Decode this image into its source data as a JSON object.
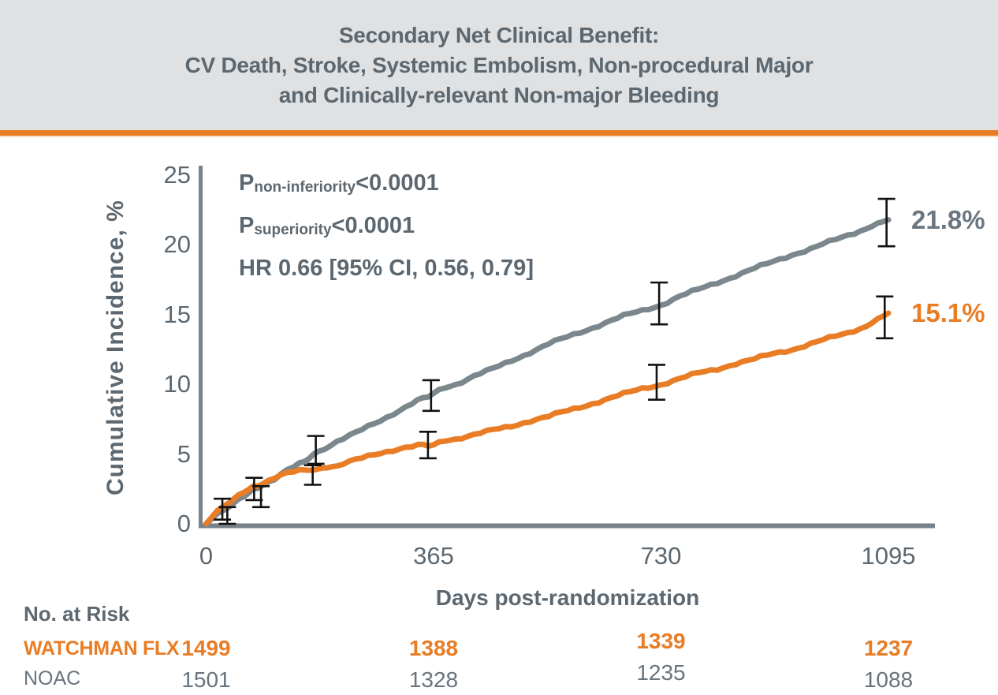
{
  "title": {
    "line1": "Secondary Net Clinical Benefit:",
    "line2": "CV Death, Stroke, Systemic Embolism, Non-procedural Major",
    "line3": "and Clinically-relevant Non-major Bleeding"
  },
  "colors": {
    "banner_bg": "#dfe1e2",
    "accent_orange": "#e87c24",
    "curve_orange": "#e87d26",
    "curve_gray": "#7c878d",
    "axis_gray": "#76818a",
    "slate_text": "#5c6770",
    "risk_gray": "#69737c",
    "error_bar_black": "#111111",
    "end_label_gray": "#6b7680"
  },
  "stats": {
    "p_label": "P",
    "non_inferiority_sub": "non-inferiority",
    "non_inferiority_value": "<0.0001",
    "superiority_sub": "superiority",
    "superiority_value": "<0.0001",
    "hr_line": "HR 0.66 [95% CI, 0.56, 0.79]"
  },
  "endpoint_labels": {
    "noac": "21.8%",
    "watchman": "15.1%"
  },
  "axes": {
    "y_label": "Cumulative Incidence, %",
    "x_label": "Days post-randomization",
    "y_ticks": [
      0,
      5,
      10,
      15,
      20,
      25
    ],
    "x_ticks": [
      0,
      365,
      730,
      1095
    ]
  },
  "risk_table": {
    "header": "No. at Risk",
    "rows": [
      {
        "label": "WATCHMAN FLX",
        "color": "orange",
        "values": [
          "1499",
          "1388",
          "1339",
          "1237"
        ]
      },
      {
        "label": "NOAC",
        "color": "gray",
        "values": [
          "1501",
          "1328",
          "1235",
          "1088"
        ]
      }
    ]
  },
  "chart_data": {
    "type": "line",
    "title": "Secondary Net Clinical Benefit: CV Death, Stroke, Systemic Embolism, Non-procedural Major and Clinically-relevant Non-major Bleeding",
    "xlabel": "Days post-randomization",
    "ylabel": "Cumulative Incidence, %",
    "xlim": [
      0,
      1150
    ],
    "ylim": [
      0,
      25
    ],
    "xticks": [
      0,
      365,
      730,
      1095
    ],
    "yticks": [
      0,
      5,
      10,
      15,
      20,
      25
    ],
    "grid": false,
    "legend": "end-of-curve labels",
    "stats": {
      "p_non_inferiority": "<0.0001",
      "p_superiority": "<0.0001",
      "hr": 0.66,
      "ci_95": [
        0.56,
        0.79
      ]
    },
    "series": [
      {
        "name": "NOAC",
        "color": "#7c878d",
        "end_label": "21.8%",
        "points": [
          [
            0,
            0
          ],
          [
            8,
            0.3
          ],
          [
            18,
            0.7
          ],
          [
            30,
            1.0
          ],
          [
            45,
            1.5
          ],
          [
            60,
            2.0
          ],
          [
            75,
            2.4
          ],
          [
            90,
            2.8
          ],
          [
            110,
            3.2
          ],
          [
            130,
            3.8
          ],
          [
            150,
            4.3
          ],
          [
            165,
            4.7
          ],
          [
            180,
            5.2
          ],
          [
            210,
            5.9
          ],
          [
            240,
            6.5
          ],
          [
            270,
            7.2
          ],
          [
            300,
            7.9
          ],
          [
            330,
            8.6
          ],
          [
            365,
            9.4
          ],
          [
            400,
            10.0
          ],
          [
            430,
            10.6
          ],
          [
            460,
            11.1
          ],
          [
            490,
            11.7
          ],
          [
            520,
            12.3
          ],
          [
            550,
            12.9
          ],
          [
            580,
            13.4
          ],
          [
            610,
            13.9
          ],
          [
            640,
            14.4
          ],
          [
            670,
            14.9
          ],
          [
            700,
            15.3
          ],
          [
            730,
            15.7
          ],
          [
            760,
            16.3
          ],
          [
            790,
            16.8
          ],
          [
            820,
            17.3
          ],
          [
            850,
            17.8
          ],
          [
            880,
            18.3
          ],
          [
            910,
            18.8
          ],
          [
            940,
            19.3
          ],
          [
            970,
            19.7
          ],
          [
            1000,
            20.2
          ],
          [
            1030,
            20.7
          ],
          [
            1060,
            21.2
          ],
          [
            1095,
            21.8
          ]
        ]
      },
      {
        "name": "WATCHMAN FLX",
        "color": "#e87d26",
        "end_label": "15.1%",
        "points": [
          [
            0,
            0
          ],
          [
            8,
            0.4
          ],
          [
            18,
            0.9
          ],
          [
            30,
            1.3
          ],
          [
            45,
            1.8
          ],
          [
            60,
            2.3
          ],
          [
            75,
            2.6
          ],
          [
            90,
            2.9
          ],
          [
            110,
            3.3
          ],
          [
            130,
            3.6
          ],
          [
            150,
            3.8
          ],
          [
            170,
            3.9
          ],
          [
            195,
            4.0
          ],
          [
            220,
            4.3
          ],
          [
            250,
            4.7
          ],
          [
            280,
            5.1
          ],
          [
            310,
            5.4
          ],
          [
            340,
            5.6
          ],
          [
            365,
            5.7
          ],
          [
            400,
            6.1
          ],
          [
            430,
            6.4
          ],
          [
            460,
            6.7
          ],
          [
            490,
            7.0
          ],
          [
            520,
            7.4
          ],
          [
            550,
            7.7
          ],
          [
            580,
            8.1
          ],
          [
            610,
            8.5
          ],
          [
            640,
            8.9
          ],
          [
            670,
            9.3
          ],
          [
            700,
            9.7
          ],
          [
            730,
            10.0
          ],
          [
            760,
            10.4
          ],
          [
            790,
            10.8
          ],
          [
            820,
            11.1
          ],
          [
            850,
            11.5
          ],
          [
            880,
            11.8
          ],
          [
            910,
            12.2
          ],
          [
            940,
            12.5
          ],
          [
            970,
            12.9
          ],
          [
            1000,
            13.3
          ],
          [
            1030,
            13.7
          ],
          [
            1060,
            14.2
          ],
          [
            1095,
            15.1
          ]
        ]
      }
    ],
    "error_bars": [
      {
        "series": "NOAC",
        "day": 34,
        "lo": 0.0,
        "hi": 1.2
      },
      {
        "series": "NOAC",
        "day": 88,
        "lo": 1.2,
        "hi": 2.7
      },
      {
        "series": "NOAC",
        "day": 176,
        "lo": 4.3,
        "hi": 6.3
      },
      {
        "series": "NOAC",
        "day": 361,
        "lo": 8.1,
        "hi": 10.3
      },
      {
        "series": "NOAC",
        "day": 727,
        "lo": 14.3,
        "hi": 17.3
      },
      {
        "series": "NOAC",
        "day": 1092,
        "lo": 19.9,
        "hi": 23.3
      },
      {
        "series": "WATCHMAN FLX",
        "day": 26,
        "lo": 0.3,
        "hi": 1.8
      },
      {
        "series": "WATCHMAN FLX",
        "day": 77,
        "lo": 1.7,
        "hi": 3.3
      },
      {
        "series": "WATCHMAN FLX",
        "day": 171,
        "lo": 2.8,
        "hi": 4.2
      },
      {
        "series": "WATCHMAN FLX",
        "day": 356,
        "lo": 4.7,
        "hi": 6.6
      },
      {
        "series": "WATCHMAN FLX",
        "day": 723,
        "lo": 8.9,
        "hi": 11.4
      },
      {
        "series": "WATCHMAN FLX",
        "day": 1089,
        "lo": 13.3,
        "hi": 16.3
      }
    ]
  }
}
